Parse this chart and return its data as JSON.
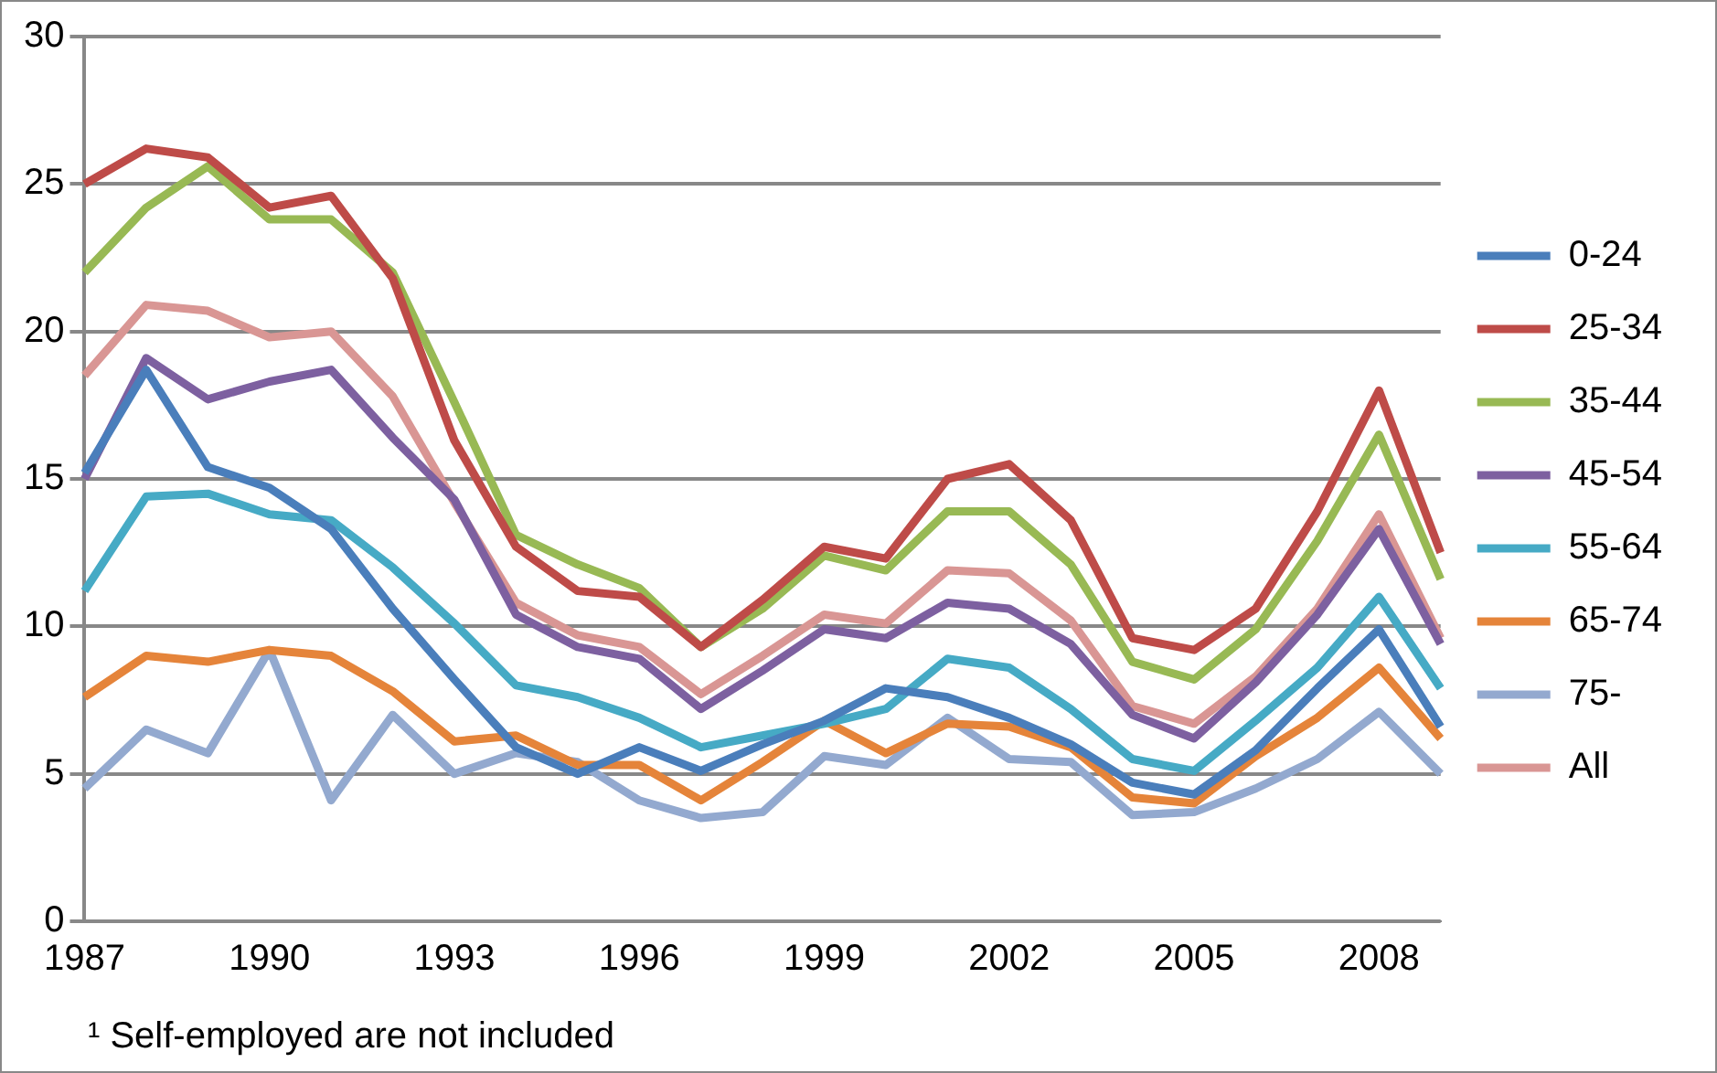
{
  "chart_data": {
    "type": "line",
    "categories": [
      "1987",
      null,
      null,
      "1990",
      null,
      null,
      "1993",
      null,
      null,
      "1996",
      null,
      null,
      "1999",
      null,
      null,
      "2002",
      null,
      null,
      "2005",
      null,
      null,
      "2008",
      null
    ],
    "ylim": [
      0,
      30
    ],
    "yticks": [
      0,
      5,
      10,
      15,
      20,
      25,
      30
    ],
    "grid": "y",
    "legend": "right",
    "marker": "none",
    "line_style": "solid",
    "annotations": [
      "¹ Self-employed are not included"
    ],
    "series": [
      {
        "name": "0-24",
        "color": "#4a7ebb",
        "values": [
          15.2,
          18.7,
          15.4,
          14.7,
          13.3,
          10.6,
          8.2,
          5.9,
          5.0,
          5.9,
          5.1,
          6.0,
          6.8,
          7.9,
          7.6,
          6.9,
          6.0,
          4.7,
          4.3,
          5.8,
          7.9,
          9.9,
          6.6
        ]
      },
      {
        "name": "25-34",
        "color": "#be4b48",
        "values": [
          25.0,
          26.2,
          25.9,
          24.2,
          24.6,
          21.8,
          16.3,
          12.7,
          11.2,
          11.0,
          9.3,
          10.9,
          12.7,
          12.3,
          15.0,
          15.5,
          13.6,
          9.6,
          9.2,
          10.6,
          13.9,
          18.0,
          12.5
        ]
      },
      {
        "name": "35-44",
        "color": "#98b954",
        "values": [
          22.0,
          24.2,
          25.6,
          23.8,
          23.8,
          22.0,
          17.6,
          13.1,
          12.1,
          11.3,
          9.3,
          10.6,
          12.4,
          11.9,
          13.9,
          13.9,
          12.1,
          8.8,
          8.2,
          9.9,
          12.9,
          16.5,
          11.6
        ]
      },
      {
        "name": "45-54",
        "color": "#7d60a0",
        "values": [
          15.0,
          19.1,
          17.7,
          18.3,
          18.7,
          16.4,
          14.3,
          10.4,
          9.3,
          8.9,
          7.2,
          8.5,
          9.9,
          9.6,
          10.8,
          10.6,
          9.4,
          7.0,
          6.2,
          8.1,
          10.4,
          13.3,
          9.4
        ]
      },
      {
        "name": "55-64",
        "color": "#46aac5",
        "values": [
          11.2,
          14.4,
          14.5,
          13.8,
          13.6,
          12.0,
          10.1,
          8.0,
          7.6,
          6.9,
          5.9,
          6.3,
          6.7,
          7.2,
          8.9,
          8.6,
          7.2,
          5.5,
          5.1,
          6.8,
          8.6,
          11.0,
          7.9
        ]
      },
      {
        "name": "65-74",
        "color": "#e5843a",
        "values": [
          7.6,
          9.0,
          8.8,
          9.2,
          9.0,
          7.8,
          6.1,
          6.3,
          5.3,
          5.3,
          4.1,
          5.4,
          6.8,
          5.7,
          6.7,
          6.6,
          5.9,
          4.2,
          4.0,
          5.6,
          6.9,
          8.6,
          6.2
        ]
      },
      {
        "name": "75-",
        "color": "#93a9cf",
        "values": [
          4.5,
          6.5,
          5.7,
          9.2,
          4.1,
          7.0,
          5.0,
          5.7,
          5.4,
          4.1,
          3.5,
          3.7,
          5.6,
          5.3,
          6.9,
          5.5,
          5.4,
          3.6,
          3.7,
          4.5,
          5.5,
          7.1,
          5.0
        ]
      },
      {
        "name": "All",
        "color": "#d99694",
        "values": [
          18.5,
          20.9,
          20.7,
          19.8,
          20.0,
          17.8,
          14.2,
          10.8,
          9.7,
          9.3,
          7.7,
          9.0,
          10.4,
          10.1,
          11.9,
          11.8,
          10.2,
          7.3,
          6.7,
          8.3,
          10.6,
          13.8,
          9.6
        ]
      }
    ]
  }
}
